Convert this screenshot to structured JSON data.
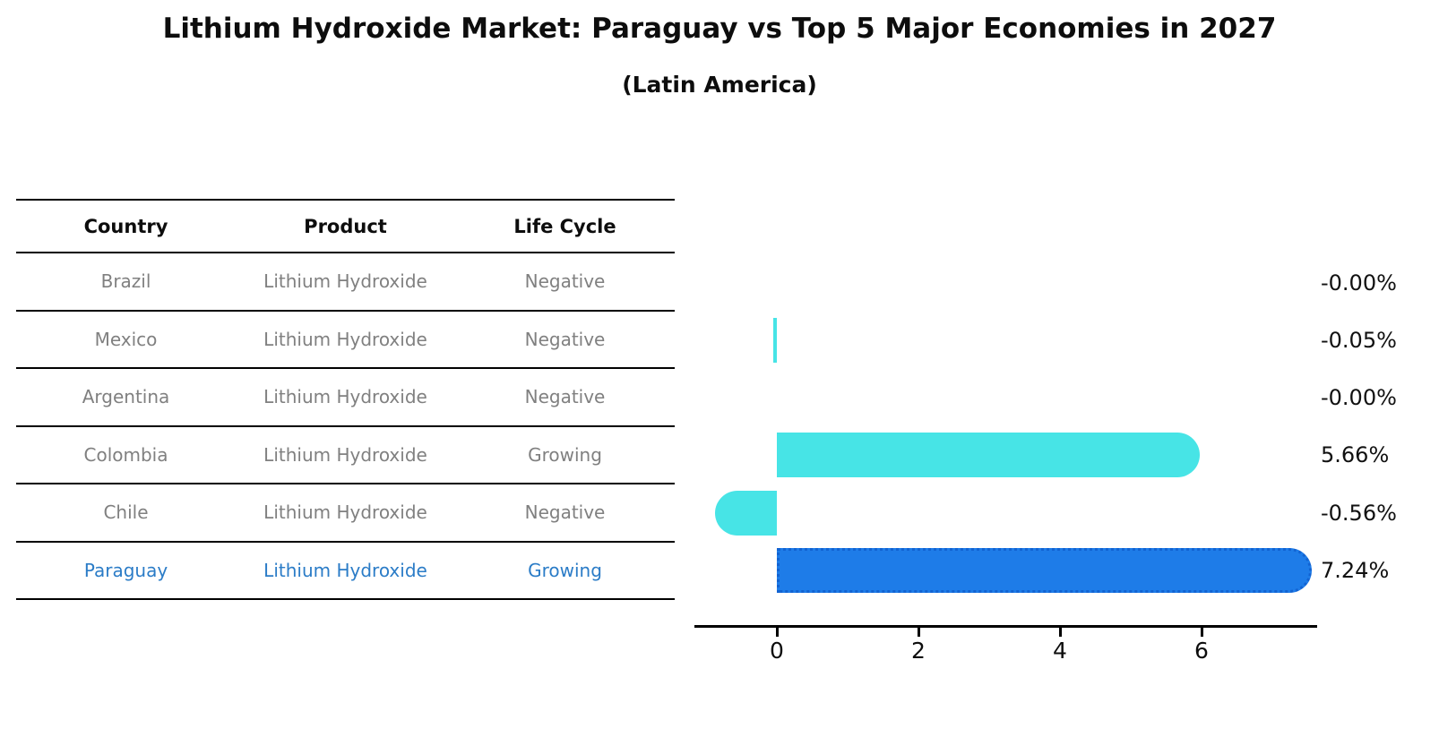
{
  "title": "Lithium Hydroxide Market: Paraguay vs Top 5 Major Economies in 2027",
  "subtitle": "(Latin America)",
  "table": {
    "headers": [
      "Country",
      "Product",
      "Life Cycle"
    ],
    "rows": [
      {
        "country": "Brazil",
        "product": "Lithium Hydroxide",
        "life_cycle": "Negative",
        "highlight": false
      },
      {
        "country": "Mexico",
        "product": "Lithium Hydroxide",
        "life_cycle": "Negative",
        "highlight": false
      },
      {
        "country": "Argentina",
        "product": "Lithium Hydroxide",
        "life_cycle": "Negative",
        "highlight": false
      },
      {
        "country": "Colombia",
        "product": "Lithium Hydroxide",
        "life_cycle": "Growing",
        "highlight": false
      },
      {
        "country": "Chile",
        "product": "Lithium Hydroxide",
        "life_cycle": "Negative",
        "highlight": false
      },
      {
        "country": "Paraguay",
        "product": "Lithium Hydroxide",
        "life_cycle": "Growing",
        "highlight": true
      }
    ]
  },
  "chart_data": {
    "type": "bar",
    "orientation": "horizontal",
    "title": "Lithium Hydroxide Market: Paraguay vs Top 5 Major Economies in 2027",
    "subtitle": "(Latin America)",
    "categories": [
      "Brazil",
      "Mexico",
      "Argentina",
      "Colombia",
      "Chile",
      "Paraguay"
    ],
    "values": [
      -0.0,
      -0.05,
      -0.0,
      5.66,
      -0.56,
      7.24
    ],
    "value_labels": [
      "-0.00%",
      "-0.05%",
      "-0.00%",
      "5.66%",
      "-0.56%",
      "7.24%"
    ],
    "x_tick_labels": [
      "0",
      "2",
      "4",
      "6"
    ],
    "x_tick_values": [
      0,
      2,
      4,
      6
    ],
    "xlim": [
      -1.16,
      7.63
    ],
    "grid": false,
    "legend": false,
    "highlight_category": "Paraguay",
    "colors": {
      "bar_default": "#47E4E6",
      "bar_highlight": "#1E7CE8",
      "bar_highlight_border": "#1263D2",
      "row_text": "#808080",
      "row_text_highlight": "#2B7CC7",
      "value_text": "#111111",
      "axis": "#000000",
      "title_text": "#0D0D0D"
    }
  }
}
